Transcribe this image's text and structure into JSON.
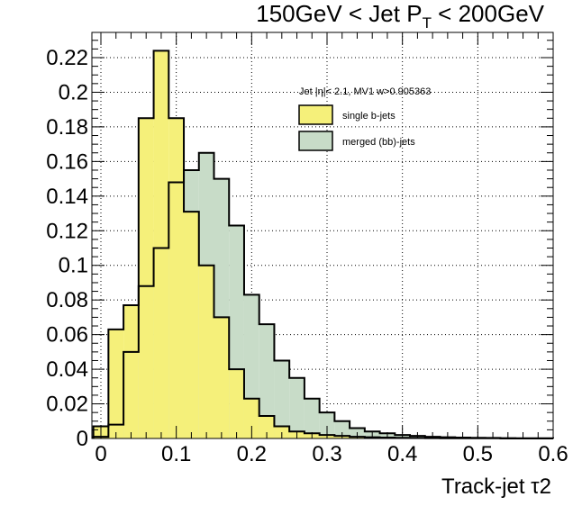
{
  "chart_data": {
    "type": "bar",
    "title": "150GeV < Jet P_T < 200GeV",
    "title_parts": {
      "main": "150GeV < Jet P",
      "sub": "T",
      "tail": " < 200GeV"
    },
    "xlabel": "Track-jet τ2",
    "ylabel": "",
    "xlim": [
      0,
      0.6
    ],
    "ylim": [
      0,
      0.235
    ],
    "xticks": [
      "0",
      "0.1",
      "0.2",
      "0.3",
      "0.4",
      "0.5",
      "0.6"
    ],
    "xtick_values": [
      0,
      0.1,
      0.2,
      0.3,
      0.4,
      0.5,
      0.6
    ],
    "yticks": [
      "0",
      "0.02",
      "0.04",
      "0.06",
      "0.08",
      "0.1",
      "0.12",
      "0.14",
      "0.16",
      "0.18",
      "0.2",
      "0.22"
    ],
    "ytick_values": [
      0,
      0.02,
      0.04,
      0.06,
      0.08,
      0.1,
      0.12,
      0.14,
      0.16,
      0.18,
      0.2,
      0.22
    ],
    "grid": true,
    "bin_edges": [
      -0.01,
      0.01,
      0.03,
      0.05,
      0.07,
      0.09,
      0.11,
      0.13,
      0.15,
      0.17,
      0.19,
      0.21,
      0.23,
      0.25,
      0.27,
      0.29,
      0.31,
      0.33,
      0.35,
      0.37,
      0.39,
      0.41,
      0.43,
      0.45,
      0.47,
      0.49,
      0.51,
      0.53,
      0.55,
      0.57,
      0.59,
      0.61
    ],
    "legend_header": "Jet |η|< 2.1, MV1 w>0.905363",
    "legend_position": "top-right",
    "series": [
      {
        "name": "merged (bb)-jets",
        "color": "#c8dcc8",
        "values": [
          0.001,
          0.008,
          0.05,
          0.088,
          0.11,
          0.148,
          0.155,
          0.165,
          0.15,
          0.123,
          0.083,
          0.066,
          0.045,
          0.035,
          0.023,
          0.015,
          0.01,
          0.006,
          0.004,
          0.003,
          0.002,
          0.0015,
          0.001,
          0.0007,
          0.0005,
          0.0004,
          0.0003,
          0.0002,
          0.0001,
          0.0001,
          0.0001
        ]
      },
      {
        "name": "single b-jets",
        "color": "#f5f07a",
        "values": [
          0.007,
          0.063,
          0.077,
          0.185,
          0.224,
          0.185,
          0.131,
          0.1,
          0.07,
          0.04,
          0.023,
          0.013,
          0.007,
          0.004,
          0.003,
          0.002,
          0.0015,
          0.001,
          0.0007,
          0.0005,
          0.0004,
          0.0003,
          0.0002,
          0.0001,
          0.0001,
          0.0001,
          0.0001,
          0,
          0,
          0,
          0
        ]
      }
    ]
  }
}
